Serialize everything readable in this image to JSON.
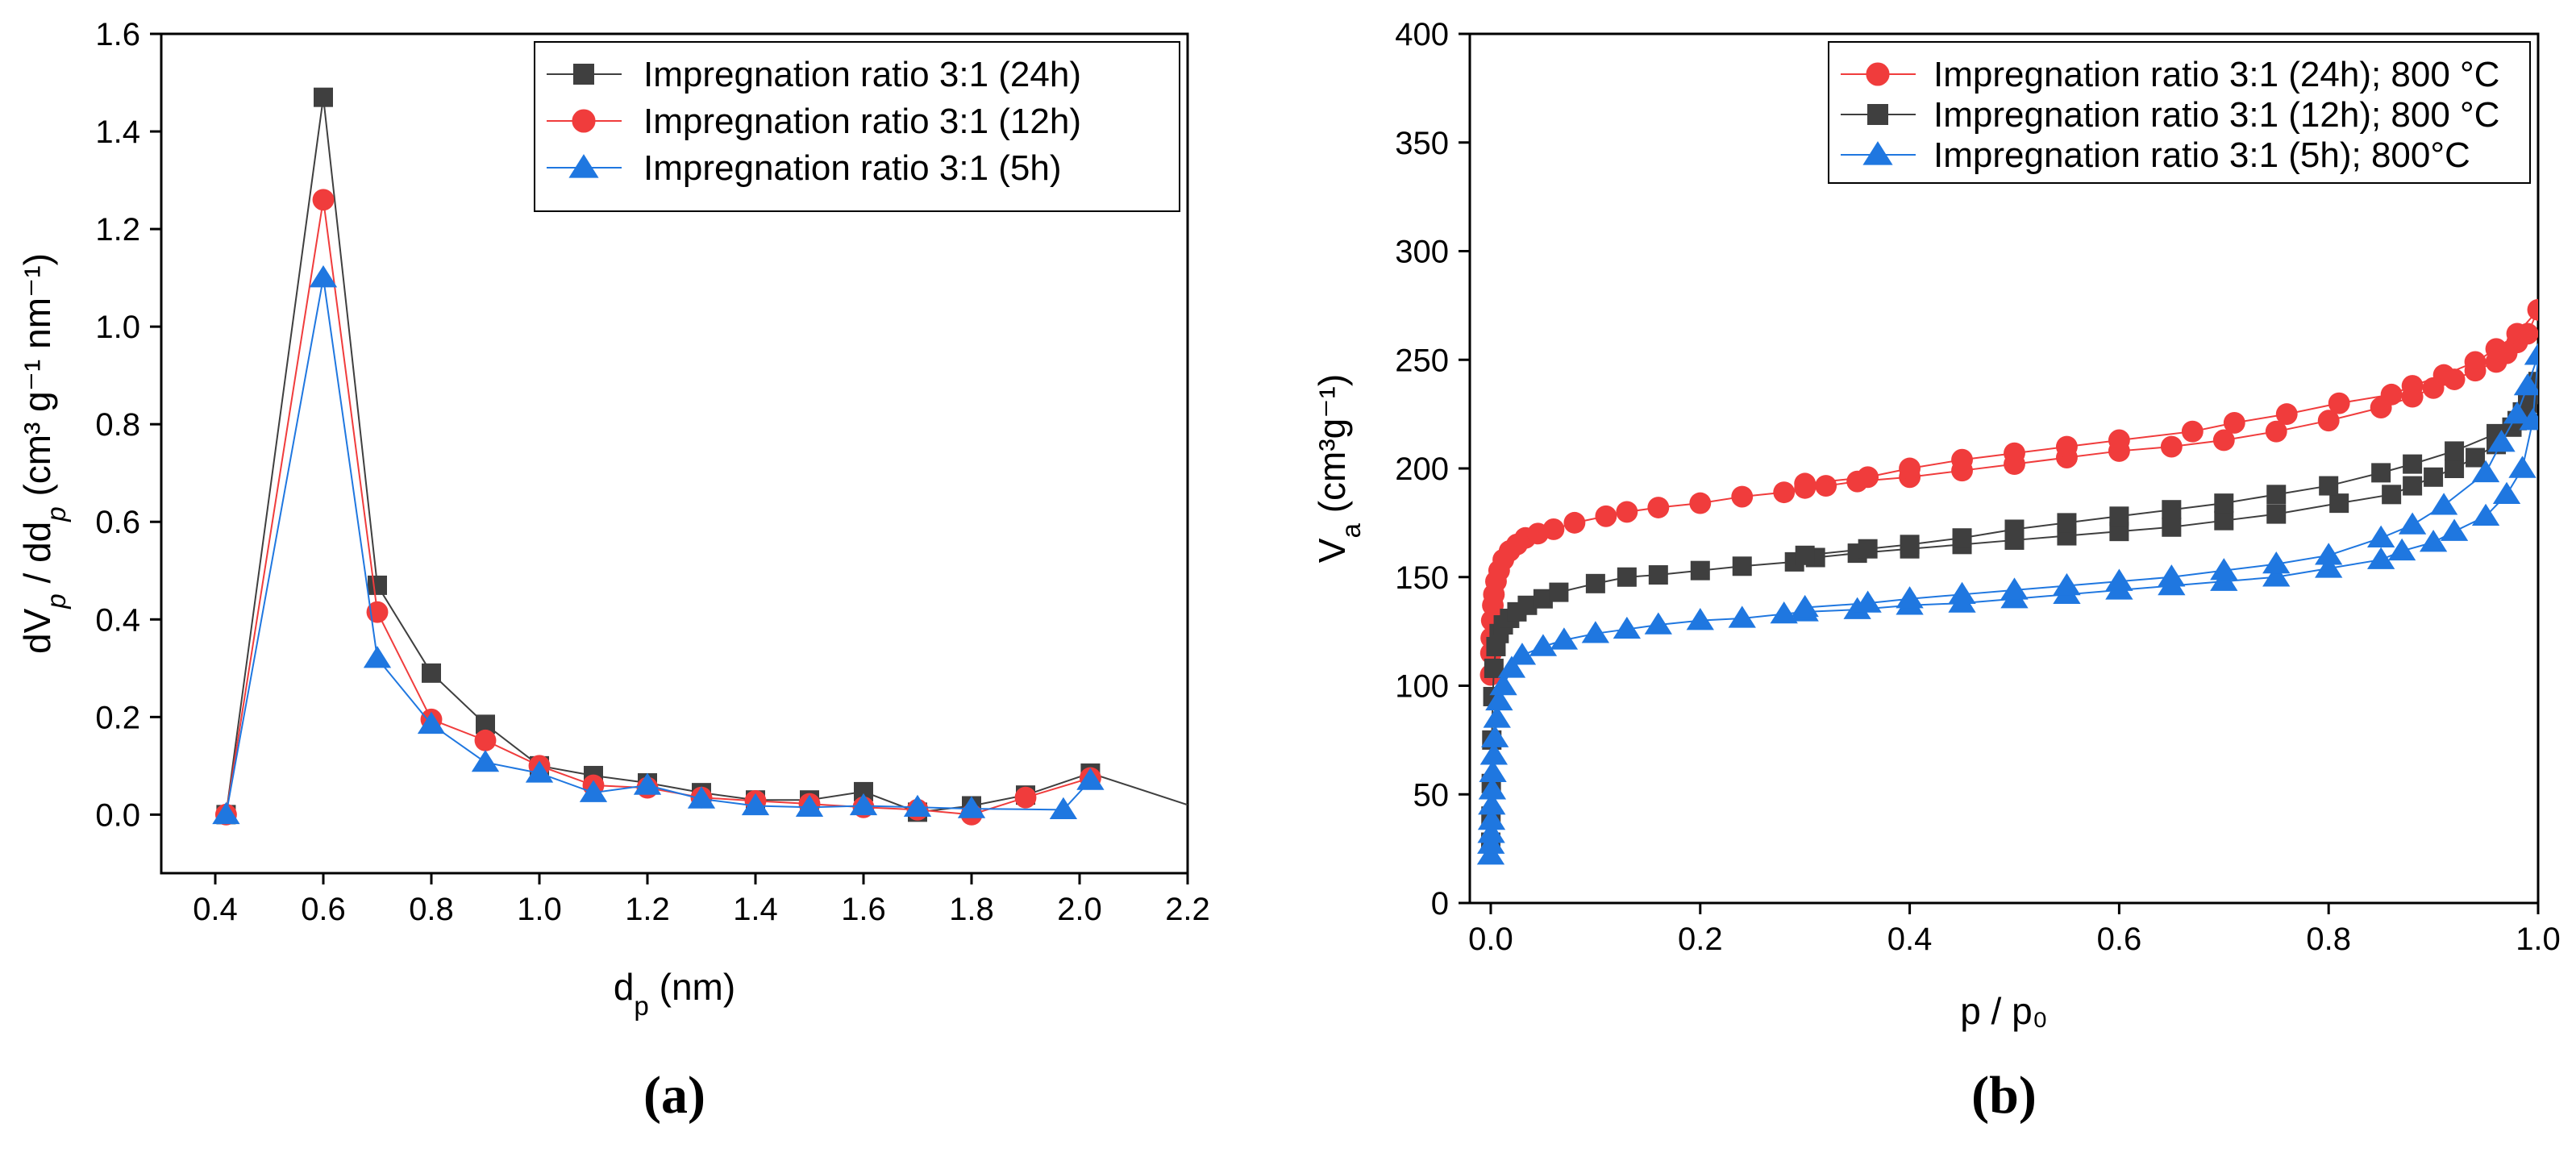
{
  "chart_data": [
    {
      "type": "line",
      "panel_label": "(a)",
      "ylabel": "dV_p / dd_p (cm³ g⁻¹ nm⁻¹)",
      "xlabel": "d_p (nm)",
      "xlim": [
        0.3,
        2.2
      ],
      "ylim": [
        -0.12,
        1.6
      ],
      "xticks": [
        0.4,
        0.6,
        0.8,
        1.0,
        1.2,
        1.4,
        1.6,
        1.8,
        2.0,
        2.2
      ],
      "xtick_labels": [
        "0.4",
        "0.6",
        "0.8",
        "1.0",
        "1.2",
        "1.4",
        "1.6",
        "1.8",
        "2.0",
        "2.2"
      ],
      "yticks": [
        0.0,
        0.2,
        0.4,
        0.6,
        0.8,
        1.0,
        1.2,
        1.4,
        1.6
      ],
      "ytick_labels": [
        "0.0",
        "0.2",
        "0.4",
        "0.6",
        "0.8",
        "1.0",
        "1.2",
        "1.4",
        "1.6"
      ],
      "grid": false,
      "legend_position": "top-right",
      "series": [
        {
          "name": "Impregnation ratio 3:1 (24h)",
          "color": "#3f3f3f",
          "marker": "square",
          "x": [
            0.42,
            0.6,
            0.7,
            0.8,
            0.9,
            1.0,
            1.1,
            1.2,
            1.3,
            1.4,
            1.5,
            1.6,
            1.7,
            1.8,
            1.9,
            2.02
          ],
          "y": [
            0.0,
            1.47,
            0.47,
            0.29,
            0.185,
            0.1,
            0.08,
            0.065,
            0.045,
            0.03,
            0.03,
            0.047,
            0.005,
            0.018,
            0.04,
            0.085
          ],
          "line_end": [
            2.2,
            0.02
          ]
        },
        {
          "name": "Impregnation ratio 3:1 (12h)",
          "color": "#f03c3c",
          "marker": "circle",
          "x": [
            0.42,
            0.6,
            0.7,
            0.8,
            0.9,
            1.0,
            1.1,
            1.2,
            1.3,
            1.4,
            1.5,
            1.6,
            1.7,
            1.8,
            1.9,
            2.02
          ],
          "y": [
            0.0,
            1.26,
            0.415,
            0.195,
            0.152,
            0.1,
            0.06,
            0.055,
            0.035,
            0.028,
            0.022,
            0.015,
            0.01,
            0.0,
            0.035,
            0.075
          ]
        },
        {
          "name": "Impregnation ratio 3:1 (5h)",
          "color": "#1f77e0",
          "marker": "triangle",
          "x": [
            0.42,
            0.6,
            0.7,
            0.8,
            0.9,
            1.0,
            1.1,
            1.2,
            1.3,
            1.4,
            1.5,
            1.6,
            1.7,
            1.8,
            1.97,
            2.02
          ],
          "y": [
            0.0,
            1.1,
            0.32,
            0.185,
            0.107,
            0.085,
            0.045,
            0.06,
            0.032,
            0.018,
            0.015,
            0.018,
            0.015,
            0.012,
            0.01,
            0.07
          ]
        }
      ]
    },
    {
      "type": "scatter",
      "panel_label": "(b)",
      "ylabel": "V_a (cm³g⁻¹)",
      "xlabel": "p / p₀",
      "xlim": [
        -0.02,
        1.0
      ],
      "ylim": [
        0,
        400
      ],
      "xticks": [
        0.0,
        0.2,
        0.4,
        0.6,
        0.8,
        1.0
      ],
      "xtick_labels": [
        "0.0",
        "0.2",
        "0.4",
        "0.6",
        "0.8",
        "1.0"
      ],
      "yticks": [
        0,
        50,
        100,
        150,
        200,
        250,
        300,
        350,
        400
      ],
      "ytick_labels": [
        "0",
        "50",
        "100",
        "150",
        "200",
        "250",
        "300",
        "350",
        "400"
      ],
      "grid": false,
      "legend_position": "top-right",
      "series": [
        {
          "name": "Impregnation ratio 3:1 (24h); 800 °C",
          "color": "#f03c3c",
          "marker": "circle",
          "x": [
            0.0,
            0.0002,
            0.0005,
            0.001,
            0.002,
            0.003,
            0.005,
            0.008,
            0.012,
            0.018,
            0.025,
            0.033,
            0.045,
            0.06,
            0.08,
            0.11,
            0.13,
            0.16,
            0.2,
            0.24,
            0.28,
            0.3,
            0.32,
            0.35,
            0.4,
            0.45,
            0.5,
            0.55,
            0.6,
            0.65,
            0.7,
            0.75,
            0.8,
            0.85,
            0.88,
            0.9,
            0.92,
            0.94,
            0.96,
            0.97,
            0.98,
            0.99,
            1.0,
            0.98,
            0.96,
            0.94,
            0.91,
            0.88,
            0.86,
            0.81,
            0.76,
            0.71,
            0.67,
            0.6,
            0.55,
            0.5,
            0.45,
            0.4,
            0.36,
            0.3
          ],
          "y": [
            105,
            115,
            122,
            130,
            137,
            142,
            148,
            153,
            158,
            162,
            165,
            168,
            170,
            172,
            175,
            178,
            180,
            182,
            184,
            187,
            189,
            191,
            192,
            194,
            196,
            199,
            202,
            205,
            208,
            210,
            213,
            217,
            222,
            228,
            233,
            237,
            241,
            245,
            249,
            253,
            258,
            262,
            273,
            262,
            255,
            249,
            243,
            238,
            234,
            230,
            225,
            221,
            217,
            213,
            210,
            207,
            204,
            200,
            196,
            193
          ]
        },
        {
          "name": "Impregnation ratio 3:1 (12h); 800 °C",
          "color": "#3f3f3f",
          "marker": "square",
          "x": [
            0.0,
            0.0002,
            0.0005,
            0.001,
            0.002,
            0.003,
            0.005,
            0.008,
            0.012,
            0.018,
            0.025,
            0.035,
            0.05,
            0.065,
            0.1,
            0.13,
            0.16,
            0.2,
            0.24,
            0.29,
            0.31,
            0.35,
            0.4,
            0.45,
            0.5,
            0.55,
            0.6,
            0.65,
            0.7,
            0.75,
            0.81,
            0.86,
            0.88,
            0.9,
            0.92,
            0.94,
            0.96,
            0.975,
            0.985,
            0.995,
            1.0,
            0.99,
            0.98,
            0.96,
            0.92,
            0.88,
            0.85,
            0.8,
            0.75,
            0.7,
            0.65,
            0.6,
            0.55,
            0.5,
            0.45,
            0.4,
            0.36,
            0.3
          ],
          "y": [
            28,
            40,
            55,
            75,
            95,
            108,
            118,
            124,
            128,
            131,
            134,
            137,
            140,
            143,
            147,
            150,
            151,
            153,
            155,
            157,
            159,
            161,
            163,
            165,
            167,
            169,
            171,
            173,
            176,
            179,
            184,
            188,
            192,
            196,
            200,
            205,
            211,
            219,
            226,
            234,
            240,
            230,
            222,
            216,
            208,
            202,
            198,
            192,
            188,
            184,
            181,
            178,
            175,
            172,
            168,
            165,
            163,
            160
          ]
        },
        {
          "name": "Impregnation ratio 3:1  (5h);  800°C",
          "color": "#1f77e0",
          "marker": "triangle",
          "x": [
            0.0,
            0.0002,
            0.0005,
            0.0008,
            0.001,
            0.0015,
            0.002,
            0.003,
            0.004,
            0.006,
            0.008,
            0.012,
            0.02,
            0.03,
            0.05,
            0.07,
            0.1,
            0.13,
            0.16,
            0.2,
            0.24,
            0.28,
            0.3,
            0.35,
            0.4,
            0.45,
            0.5,
            0.55,
            0.6,
            0.65,
            0.7,
            0.75,
            0.8,
            0.85,
            0.87,
            0.9,
            0.92,
            0.95,
            0.97,
            0.985,
            0.995,
            1.0,
            0.99,
            0.98,
            0.965,
            0.95,
            0.91,
            0.88,
            0.85,
            0.8,
            0.75,
            0.7,
            0.65,
            0.6,
            0.55,
            0.5,
            0.45,
            0.4,
            0.36,
            0.3
          ],
          "y": [
            22,
            27,
            32,
            38,
            45,
            52,
            60,
            68,
            76,
            85,
            93,
            100,
            108,
            114,
            118,
            121,
            124,
            126,
            128,
            130,
            131,
            133,
            134,
            135,
            137,
            138,
            140,
            142,
            144,
            146,
            148,
            150,
            154,
            158,
            162,
            166,
            171,
            178,
            188,
            200,
            222,
            252,
            238,
            225,
            212,
            198,
            183,
            174,
            168,
            160,
            156,
            153,
            150,
            148,
            146,
            144,
            142,
            140,
            138,
            136
          ]
        }
      ]
    }
  ]
}
